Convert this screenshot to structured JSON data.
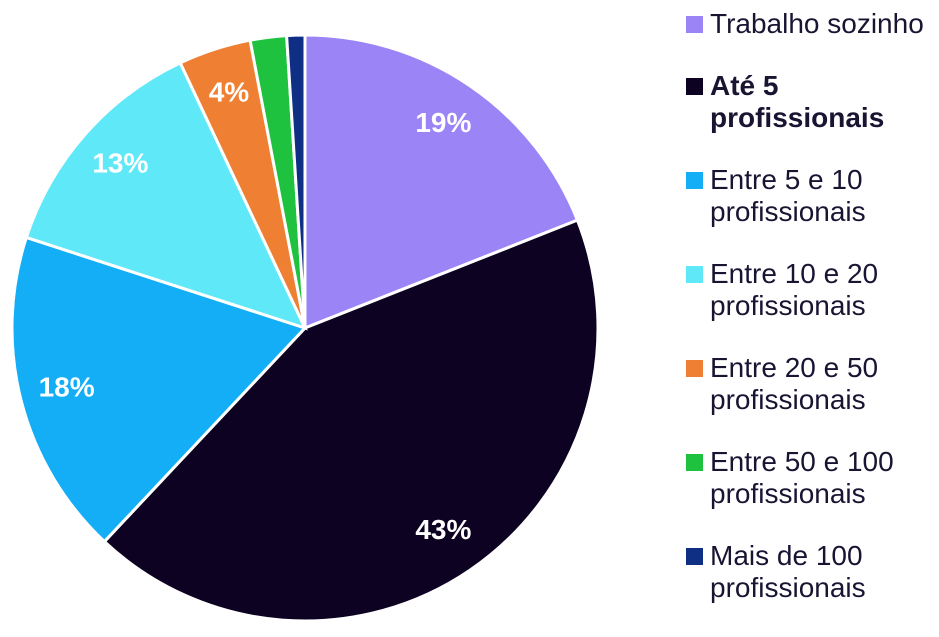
{
  "chart_data": {
    "type": "pie",
    "categories": [
      "Trabalho sozinho",
      "Até 5 profissionais",
      "Entre 5 e 10 profissionais",
      "Entre 10 e 20 profissionais",
      "Entre 20 e 50 profissionais",
      "Entre 50 e 100 profissionais",
      "Mais de 100 profissionais"
    ],
    "values": [
      19,
      43,
      18,
      13,
      4,
      2,
      1
    ],
    "value_labels": [
      "19%",
      "43%",
      "18%",
      "13%",
      "4%",
      null,
      null
    ],
    "colors": [
      "#9b84f5",
      "#0d0221",
      "#13aef5",
      "#5ee8f8",
      "#ef8033",
      "#1fc23f",
      "#0f2f85"
    ],
    "bold": [
      false,
      true,
      false,
      false,
      false,
      false,
      false
    ],
    "legend": "right"
  }
}
